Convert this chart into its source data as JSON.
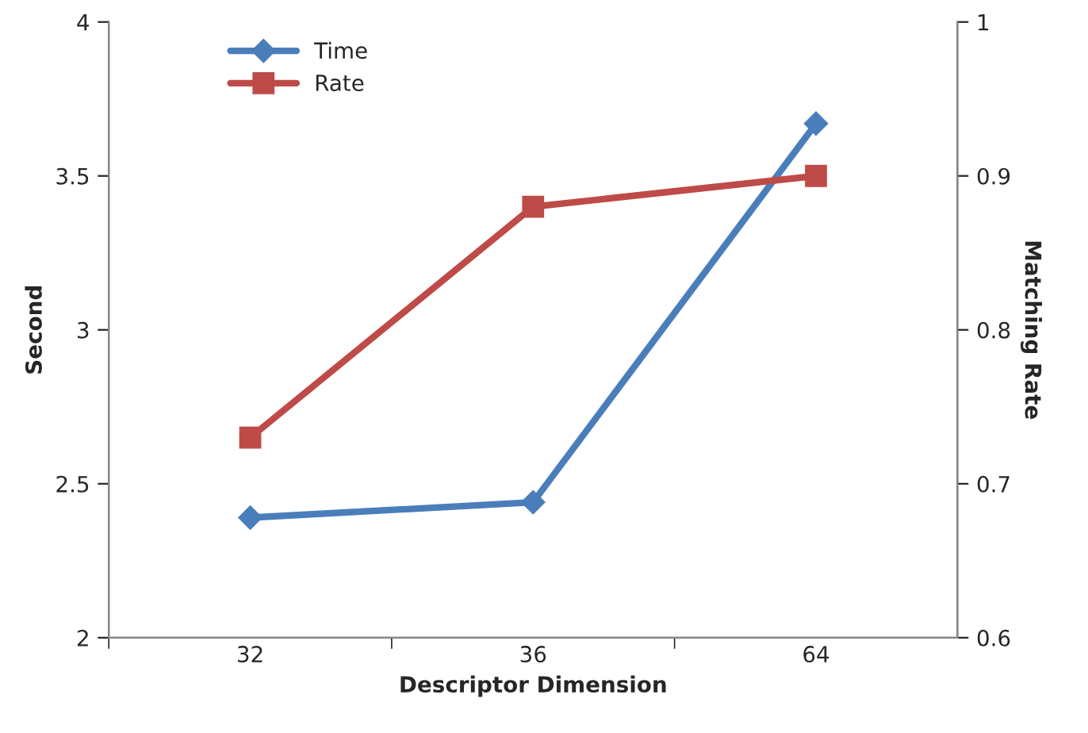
{
  "chart_data": {
    "type": "line",
    "xlabel": "Descriptor Dimension",
    "ylabel": "Second",
    "y2label": "Matching Rate",
    "categories": [
      "32",
      "36",
      "64"
    ],
    "series": [
      {
        "name": "Time",
        "color": "#4a7ebb",
        "values": [
          2.39,
          2.44,
          3.67
        ],
        "marker": "diamond"
      },
      {
        "name": "Rate",
        "color": "#be4b48",
        "values": [
          0.73,
          0.88,
          0.9
        ],
        "marker": "square",
        "axis": "y2"
      }
    ],
    "ylim": [
      2,
      4
    ],
    "yticks": [
      2,
      2.5,
      3,
      3.5,
      4
    ],
    "y2lim": [
      0.6,
      1
    ],
    "y2ticks": [
      0.6,
      0.7,
      0.8,
      0.9,
      1
    ],
    "grid": false,
    "legend": "top left",
    "line_style": "solid"
  }
}
